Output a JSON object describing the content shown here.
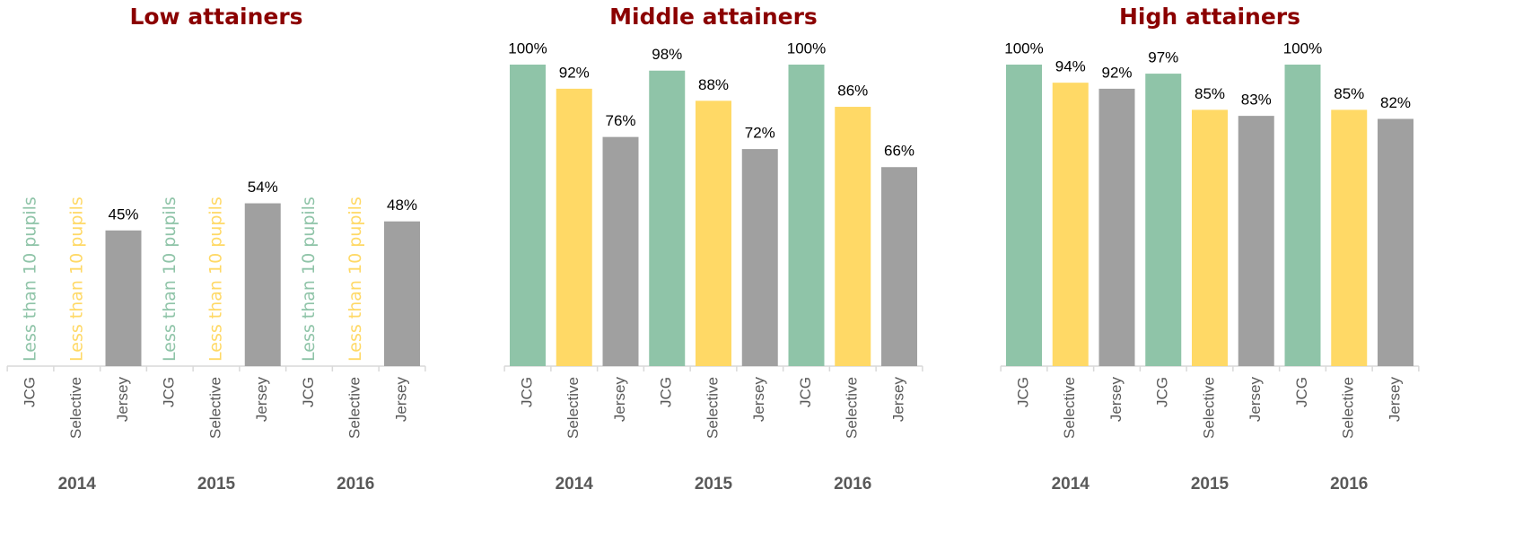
{
  "chart_data": [
    {
      "type": "bar",
      "title": "Low attainers",
      "categories": [
        "JCG",
        "Selective",
        "Jersey",
        "JCG",
        "Selective",
        "Jersey",
        "JCG",
        "Selective",
        "Jersey"
      ],
      "groups": [
        "2014",
        "2015",
        "2016"
      ],
      "values": [
        null,
        null,
        45,
        null,
        null,
        54,
        null,
        null,
        48
      ],
      "value_labels": [
        "Less than 10 pupils",
        "Less than 10 pupils",
        "45%",
        "Less than 10 pupils",
        "Less than 10 pupils",
        "54%",
        "Less than 10 pupils",
        "Less than 10 pupils",
        "48%"
      ],
      "colors": [
        "#8fc4a8",
        "#ffd966",
        "#a0a0a0",
        "#8fc4a8",
        "#ffd966",
        "#a0a0a0",
        "#8fc4a8",
        "#ffd966",
        "#a0a0a0"
      ],
      "ylim": [
        0,
        100
      ]
    },
    {
      "type": "bar",
      "title": "Middle attainers",
      "categories": [
        "JCG",
        "Selective",
        "Jersey",
        "JCG",
        "Selective",
        "Jersey",
        "JCG",
        "Selective",
        "Jersey"
      ],
      "groups": [
        "2014",
        "2015",
        "2016"
      ],
      "values": [
        100,
        92,
        76,
        98,
        88,
        72,
        100,
        86,
        66
      ],
      "value_labels": [
        "100%",
        "92%",
        "76%",
        "98%",
        "88%",
        "72%",
        "100%",
        "86%",
        "66%"
      ],
      "colors": [
        "#8fc4a8",
        "#ffd966",
        "#a0a0a0",
        "#8fc4a8",
        "#ffd966",
        "#a0a0a0",
        "#8fc4a8",
        "#ffd966",
        "#a0a0a0"
      ],
      "ylim": [
        0,
        100
      ]
    },
    {
      "type": "bar",
      "title": "High attainers",
      "categories": [
        "JCG",
        "Selective",
        "Jersey",
        "JCG",
        "Selective",
        "Jersey",
        "JCG",
        "Selective",
        "Jersey"
      ],
      "groups": [
        "2014",
        "2015",
        "2016"
      ],
      "values": [
        100,
        94,
        92,
        97,
        85,
        83,
        100,
        85,
        82
      ],
      "value_labels": [
        "100%",
        "94%",
        "92%",
        "97%",
        "85%",
        "83%",
        "100%",
        "85%",
        "82%"
      ],
      "colors": [
        "#8fc4a8",
        "#ffd966",
        "#a0a0a0",
        "#8fc4a8",
        "#ffd966",
        "#a0a0a0",
        "#8fc4a8",
        "#ffd966",
        "#a0a0a0"
      ],
      "ylim": [
        0,
        100
      ]
    }
  ]
}
